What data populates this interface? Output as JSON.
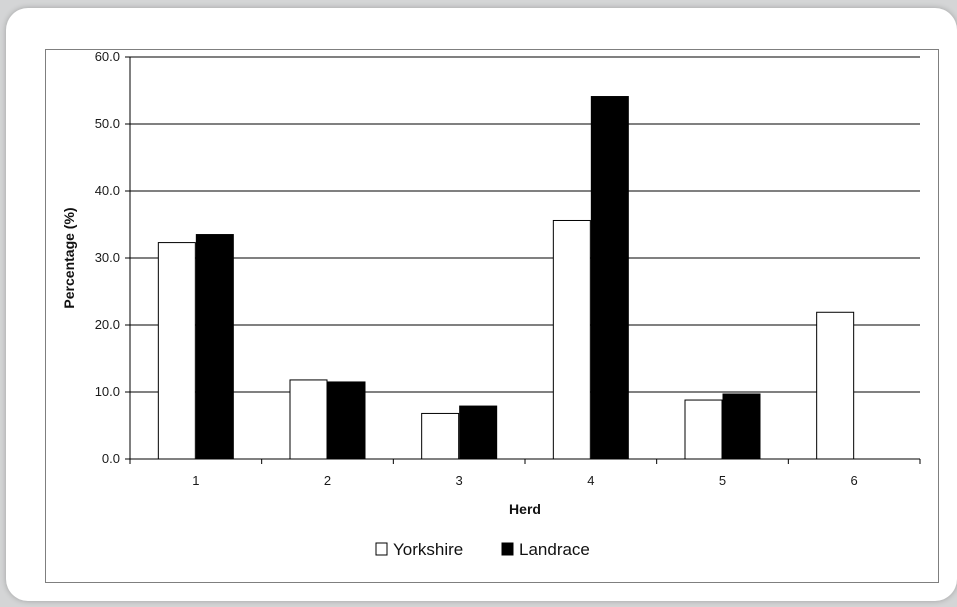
{
  "chart_data": {
    "type": "bar",
    "xlabel": "Herd",
    "ylabel": "Percentage (%)",
    "categories": [
      "1",
      "2",
      "3",
      "4",
      "5",
      "6"
    ],
    "ylim": [
      0,
      60
    ],
    "yticks": [
      "0.0",
      "10.0",
      "20.0",
      "30.0",
      "40.0",
      "50.0",
      "60.0"
    ],
    "grid": "horizontal",
    "legend_position": "bottom",
    "series": [
      {
        "name": "Yorkshire",
        "color": "#ffffff",
        "values": [
          32.3,
          11.8,
          6.8,
          35.6,
          8.8,
          21.9
        ]
      },
      {
        "name": "Landrace",
        "color": "#000000",
        "values": [
          33.5,
          11.5,
          7.9,
          54.1,
          9.7,
          null
        ]
      }
    ]
  }
}
